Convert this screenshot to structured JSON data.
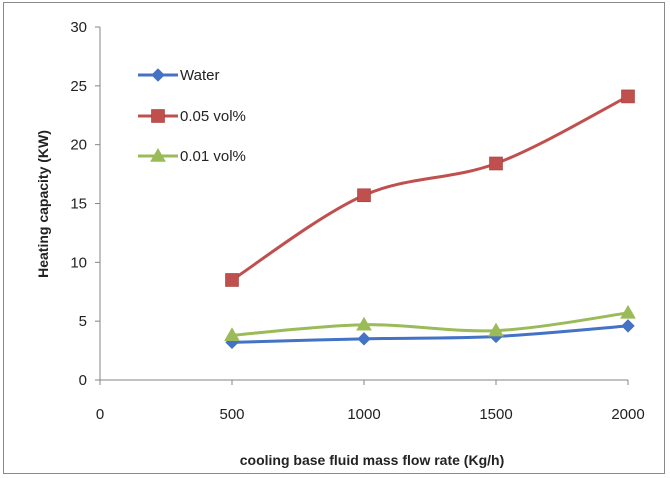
{
  "chart_data": {
    "type": "line",
    "title": "",
    "xlabel": "cooling base fluid mass flow rate (Kg/h)",
    "ylabel": "Heating capacity (KW)",
    "xlim": [
      0,
      2000
    ],
    "ylim": [
      0,
      30
    ],
    "x_ticks": [
      "0",
      "500",
      "1000",
      "1500",
      "2000"
    ],
    "y_ticks": [
      "0",
      "5",
      "10",
      "15",
      "20",
      "25",
      "30"
    ],
    "grid": false,
    "smooth": true,
    "legend_position": "top-left",
    "series": [
      {
        "name": "Water",
        "color": "#4472C4",
        "marker": "diamond",
        "x": [
          500,
          1000,
          1500,
          2000
        ],
        "values": [
          3.2,
          3.5,
          3.7,
          4.6
        ]
      },
      {
        "name": "0.05 vol%",
        "color": "#C0504D",
        "marker": "square",
        "x": [
          500,
          1000,
          1500,
          2000
        ],
        "values": [
          8.5,
          15.7,
          18.4,
          24.1
        ]
      },
      {
        "name": "0.01 vol%",
        "color": "#9BBB59",
        "marker": "triangle",
        "x": [
          500,
          1000,
          1500,
          2000
        ],
        "values": [
          3.8,
          4.7,
          4.2,
          5.7
        ]
      }
    ]
  }
}
